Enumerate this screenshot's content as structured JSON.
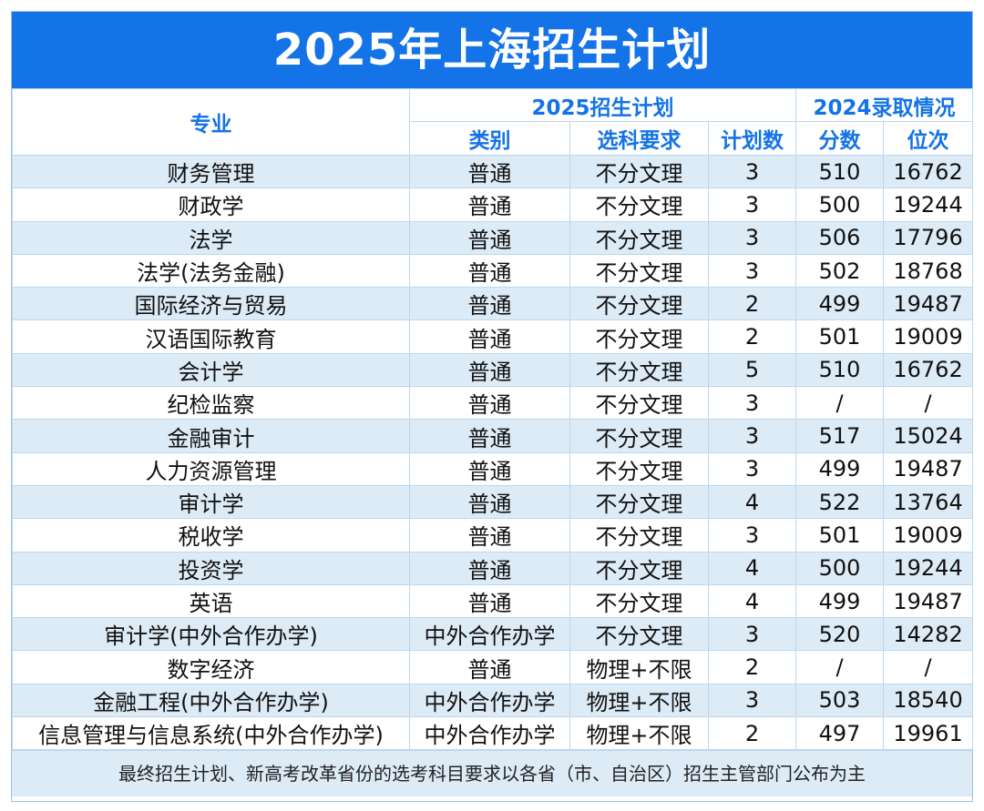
{
  "title": "2025年上海招生计划",
  "header": {
    "major": "专业",
    "plan_group": "2025招生计划",
    "result_group": "2024录取情况",
    "type": "类别",
    "subject_req": "选科要求",
    "plan_count": "计划数",
    "score": "分数",
    "rank": "位次"
  },
  "rows": [
    {
      "major": "财务管理",
      "type": "普通",
      "req": "不分文理",
      "count": "3",
      "score": "510",
      "rank": "16762"
    },
    {
      "major": "财政学",
      "type": "普通",
      "req": "不分文理",
      "count": "3",
      "score": "500",
      "rank": "19244"
    },
    {
      "major": "法学",
      "type": "普通",
      "req": "不分文理",
      "count": "3",
      "score": "506",
      "rank": "17796"
    },
    {
      "major": "法学(法务金融)",
      "type": "普通",
      "req": "不分文理",
      "count": "3",
      "score": "502",
      "rank": "18768"
    },
    {
      "major": "国际经济与贸易",
      "type": "普通",
      "req": "不分文理",
      "count": "2",
      "score": "499",
      "rank": "19487"
    },
    {
      "major": "汉语国际教育",
      "type": "普通",
      "req": "不分文理",
      "count": "2",
      "score": "501",
      "rank": "19009"
    },
    {
      "major": "会计学",
      "type": "普通",
      "req": "不分文理",
      "count": "5",
      "score": "510",
      "rank": "16762"
    },
    {
      "major": "纪检监察",
      "type": "普通",
      "req": "不分文理",
      "count": "3",
      "score": "/",
      "rank": "/"
    },
    {
      "major": "金融审计",
      "type": "普通",
      "req": "不分文理",
      "count": "3",
      "score": "517",
      "rank": "15024"
    },
    {
      "major": "人力资源管理",
      "type": "普通",
      "req": "不分文理",
      "count": "3",
      "score": "499",
      "rank": "19487"
    },
    {
      "major": "审计学",
      "type": "普通",
      "req": "不分文理",
      "count": "4",
      "score": "522",
      "rank": "13764"
    },
    {
      "major": "税收学",
      "type": "普通",
      "req": "不分文理",
      "count": "3",
      "score": "501",
      "rank": "19009"
    },
    {
      "major": "投资学",
      "type": "普通",
      "req": "不分文理",
      "count": "4",
      "score": "500",
      "rank": "19244"
    },
    {
      "major": "英语",
      "type": "普通",
      "req": "不分文理",
      "count": "4",
      "score": "499",
      "rank": "19487"
    },
    {
      "major": "审计学(中外合作办学)",
      "type": "中外合作办学",
      "req": "不分文理",
      "count": "3",
      "score": "520",
      "rank": "14282"
    },
    {
      "major": "数字经济",
      "type": "普通",
      "req": "物理+不限",
      "count": "2",
      "score": "/",
      "rank": "/"
    },
    {
      "major": "金融工程(中外合作办学)",
      "type": "中外合作办学",
      "req": "物理+不限",
      "count": "3",
      "score": "503",
      "rank": "18540"
    },
    {
      "major": "信息管理与信息系统(中外合作办学)",
      "type": "中外合作办学",
      "req": "物理+不限",
      "count": "2",
      "score": "497",
      "rank": "19961"
    }
  ],
  "footer": "最终招生计划、新高考改革省份的选考科目要求以各省（市、自治区）招生主管部门公布为主"
}
